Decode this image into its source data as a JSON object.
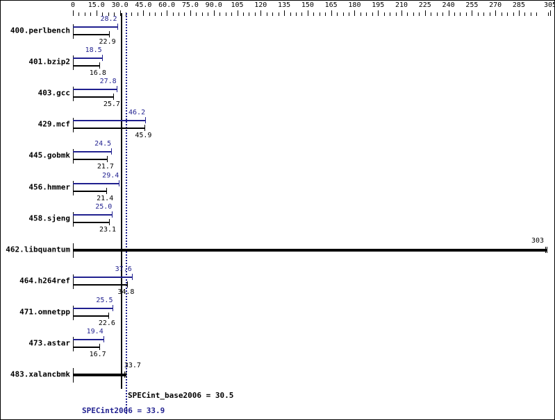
{
  "chart_data": {
    "type": "bar",
    "orientation": "horizontal",
    "title": "",
    "xlabel": "",
    "ylabel": "",
    "xlim": [
      0,
      305
    ],
    "x_ticks": [
      "0",
      "15.0",
      "30.0",
      "45.0",
      "60.0",
      "75.0",
      "90.0",
      "105",
      "120",
      "135",
      "150",
      "165",
      "180",
      "195",
      "210",
      "225",
      "240",
      "255",
      "270",
      "285",
      "305"
    ],
    "x_tick_values": [
      0,
      15,
      30,
      45,
      60,
      75,
      90,
      105,
      120,
      135,
      150,
      165,
      180,
      195,
      210,
      225,
      240,
      255,
      270,
      285,
      305
    ],
    "categories": [
      "400.perlbench",
      "401.bzip2",
      "403.gcc",
      "429.mcf",
      "445.gobmk",
      "456.hmmer",
      "458.sjeng",
      "462.libquantum",
      "464.h264ref",
      "471.omnetpp",
      "473.astar",
      "483.xalancbmk"
    ],
    "series": [
      {
        "name": "SPECint2006 (peak)",
        "color": "#1f1f8f",
        "values": [
          28.2,
          18.5,
          27.8,
          46.2,
          24.5,
          29.4,
          25.0,
          303,
          37.6,
          25.5,
          19.4,
          33.7
        ]
      },
      {
        "name": "SPECint_base2006 (base)",
        "color": "#000000",
        "values": [
          22.9,
          16.8,
          25.7,
          45.9,
          21.7,
          21.4,
          23.1,
          303,
          34.8,
          22.6,
          16.7,
          33.7
        ]
      }
    ],
    "reference_lines": [
      {
        "label": "SPECint_base2006 = 30.5",
        "value": 30.5,
        "style": "solid",
        "color": "#000000"
      },
      {
        "label": "SPECint2006 = 33.9",
        "value": 33.9,
        "style": "dotted",
        "color": "#1f1f8f"
      }
    ],
    "combined_rows": [
      "462.libquantum",
      "483.xalancbmk"
    ],
    "grid": false,
    "legend": "none"
  },
  "rows": [
    {
      "name": "400.perlbench",
      "peak": 28.2,
      "base": 22.9,
      "peak_label": "28.2",
      "base_label": "22.9"
    },
    {
      "name": "401.bzip2",
      "peak": 18.5,
      "base": 16.8,
      "peak_label": "18.5",
      "base_label": "16.8"
    },
    {
      "name": "403.gcc",
      "peak": 27.8,
      "base": 25.7,
      "peak_label": "27.8",
      "base_label": "25.7"
    },
    {
      "name": "429.mcf",
      "peak": 46.2,
      "base": 45.9,
      "peak_label": "46.2",
      "base_label": "45.9"
    },
    {
      "name": "445.gobmk",
      "peak": 24.5,
      "base": 21.7,
      "peak_label": "24.5",
      "base_label": "21.7"
    },
    {
      "name": "456.hmmer",
      "peak": 29.4,
      "base": 21.4,
      "peak_label": "29.4",
      "base_label": "21.4"
    },
    {
      "name": "458.sjeng",
      "peak": 25.0,
      "base": 23.1,
      "peak_label": "25.0",
      "base_label": "23.1"
    },
    {
      "name": "462.libquantum",
      "combined": 303,
      "combined_label": "303"
    },
    {
      "name": "464.h264ref",
      "peak": 37.6,
      "base": 34.8,
      "peak_label": "37.6",
      "base_label": "34.8"
    },
    {
      "name": "471.omnetpp",
      "peak": 25.5,
      "base": 22.6,
      "peak_label": "25.5",
      "base_label": "22.6"
    },
    {
      "name": "473.astar",
      "peak": 19.4,
      "base": 16.7,
      "peak_label": "19.4",
      "base_label": "16.7"
    },
    {
      "name": "483.xalancbmk",
      "combined": 33.7,
      "combined_label": "33.7"
    }
  ],
  "summary": {
    "base": "SPECint_base2006 = 30.5",
    "peak": "SPECint2006 = 33.9"
  },
  "colors": {
    "peak": "#1f1f8f",
    "base": "#000000"
  }
}
